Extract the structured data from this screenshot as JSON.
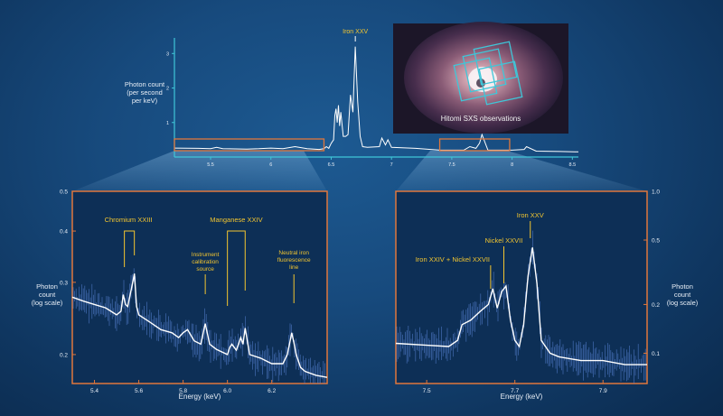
{
  "colors": {
    "background": "#174a7d",
    "axis_top": "#3fc6d8",
    "box_outline": "#e0773c",
    "annotation": "#f2c530",
    "spectrum": "#ffffff",
    "noise": "#5a86d8"
  },
  "inset": {
    "caption": "Hitomi SXS observations",
    "icon": "galaxy-cluster-image"
  },
  "chart_data": [
    {
      "type": "line",
      "id": "top",
      "ylabel_lines": [
        "Photon count",
        "(per second",
        "per keV)"
      ],
      "xlim": [
        5.2,
        8.55
      ],
      "ylim": [
        0,
        3.4
      ],
      "xticks": [
        5.5,
        6,
        6.5,
        7,
        7.5,
        8,
        8.5
      ],
      "xtick_labels": [
        "5.5",
        "6",
        "6.5",
        "7",
        "7.5",
        "8",
        "8.5"
      ],
      "yticks": [
        1,
        2,
        3
      ],
      "ytick_labels": [
        "1",
        "2",
        "3"
      ],
      "annotations": [
        {
          "text": "Iron XXV",
          "x": 6.7
        }
      ],
      "zoom_boxes": [
        {
          "x0": 5.2,
          "x1": 6.44
        },
        {
          "x0": 7.4,
          "x1": 7.98
        }
      ],
      "x": [
        5.2,
        5.4,
        5.5,
        5.55,
        5.6,
        5.8,
        5.9,
        6.0,
        6.1,
        6.2,
        6.3,
        6.4,
        6.44,
        6.46,
        6.48,
        6.5,
        6.52,
        6.53,
        6.54,
        6.55,
        6.56,
        6.57,
        6.58,
        6.6,
        6.62,
        6.64,
        6.66,
        6.68,
        6.7,
        6.72,
        6.74,
        6.76,
        6.8,
        6.9,
        6.92,
        6.95,
        6.97,
        7.0,
        7.2,
        7.4,
        7.6,
        7.65,
        7.7,
        7.73,
        7.75,
        7.8,
        8.0,
        8.1,
        8.12,
        8.2,
        8.4,
        8.55
      ],
      "y": [
        0.26,
        0.25,
        0.24,
        0.28,
        0.24,
        0.23,
        0.24,
        0.26,
        0.24,
        0.3,
        0.24,
        0.22,
        0.24,
        0.3,
        0.25,
        0.4,
        0.5,
        1.2,
        1.4,
        1.0,
        1.5,
        0.9,
        1.3,
        0.6,
        0.6,
        0.65,
        1.8,
        1.3,
        3.2,
        1.6,
        0.6,
        0.3,
        0.28,
        0.3,
        0.55,
        0.35,
        0.5,
        0.28,
        0.25,
        0.2,
        0.2,
        0.3,
        0.25,
        0.4,
        0.65,
        0.2,
        0.2,
        0.22,
        0.3,
        0.17,
        0.16,
        0.15
      ]
    },
    {
      "type": "line",
      "id": "left",
      "xlabel": "Energy (keV)",
      "ylabel_lines": [
        "Photon",
        "count",
        "(log scale)"
      ],
      "xlim": [
        5.3,
        6.45
      ],
      "ylim": [
        0.17,
        0.5
      ],
      "yscale": "log",
      "xticks": [
        5.4,
        5.6,
        5.8,
        6.0,
        6.2
      ],
      "xtick_labels": [
        "5.4",
        "5.6",
        "5.8",
        "6.0",
        "6.2"
      ],
      "yticks": [
        0.2,
        0.3,
        0.4,
        0.5
      ],
      "ytick_labels": [
        "0.2",
        "0.3",
        "0.4",
        "0.5"
      ],
      "annotations": [
        {
          "lines": [
            "Chromium XXIII"
          ],
          "x": 5.553
        },
        {
          "lines": [
            "Manganese XXIV"
          ],
          "x": 6.04
        },
        {
          "lines": [
            "Instrument",
            "calibration",
            "source"
          ],
          "x": 5.9
        },
        {
          "lines": [
            "Neutral iron",
            "fluorescence",
            "line"
          ],
          "x": 6.3
        }
      ],
      "x": [
        5.3,
        5.35,
        5.4,
        5.45,
        5.5,
        5.52,
        5.53,
        5.54,
        5.55,
        5.57,
        5.58,
        5.59,
        5.6,
        5.65,
        5.7,
        5.75,
        5.78,
        5.8,
        5.82,
        5.85,
        5.88,
        5.9,
        5.92,
        5.95,
        6.0,
        6.01,
        6.02,
        6.04,
        6.05,
        6.06,
        6.07,
        6.08,
        6.1,
        6.15,
        6.2,
        6.25,
        6.27,
        6.28,
        6.29,
        6.3,
        6.31,
        6.33,
        6.35,
        6.4,
        6.45
      ],
      "y": [
        0.276,
        0.27,
        0.265,
        0.26,
        0.25,
        0.255,
        0.28,
        0.265,
        0.262,
        0.295,
        0.315,
        0.262,
        0.25,
        0.24,
        0.23,
        0.226,
        0.22,
        0.226,
        0.23,
        0.216,
        0.212,
        0.238,
        0.212,
        0.206,
        0.2,
        0.208,
        0.212,
        0.205,
        0.212,
        0.22,
        0.212,
        0.232,
        0.2,
        0.196,
        0.19,
        0.19,
        0.2,
        0.212,
        0.226,
        0.214,
        0.2,
        0.186,
        0.182,
        0.178,
        0.176
      ]
    },
    {
      "type": "line",
      "id": "right",
      "xlabel": "Energy (keV)",
      "ylabel_lines": [
        "Photon",
        "count",
        "(log scale)"
      ],
      "xlim": [
        7.43,
        8.0
      ],
      "ylim": [
        0.065,
        1.0
      ],
      "yscale": "log",
      "xticks": [
        7.5,
        7.7,
        7.9
      ],
      "xtick_labels": [
        "7.5",
        "7.7",
        "7.9"
      ],
      "yticks": [
        0.1,
        0.2,
        0.5,
        1.0
      ],
      "ytick_labels": [
        "0.1",
        "0.2",
        "0.5",
        "1.0"
      ],
      "annotations": [
        {
          "lines": [
            "Iron XXV"
          ],
          "x": 7.735
        },
        {
          "lines": [
            "Nickel XXVII"
          ],
          "x": 7.675
        },
        {
          "lines": [
            "Iron XXIV + Nickel XXVII"
          ],
          "x": 7.645
        }
      ],
      "x": [
        7.43,
        7.5,
        7.55,
        7.57,
        7.58,
        7.6,
        7.62,
        7.64,
        7.65,
        7.66,
        7.67,
        7.68,
        7.69,
        7.7,
        7.71,
        7.72,
        7.73,
        7.74,
        7.75,
        7.76,
        7.78,
        7.8,
        7.85,
        7.9,
        7.95,
        8.0
      ],
      "y": [
        0.115,
        0.112,
        0.11,
        0.12,
        0.15,
        0.16,
        0.18,
        0.2,
        0.25,
        0.19,
        0.24,
        0.26,
        0.16,
        0.12,
        0.11,
        0.15,
        0.3,
        0.45,
        0.27,
        0.12,
        0.1,
        0.095,
        0.09,
        0.09,
        0.085,
        0.085
      ]
    }
  ]
}
